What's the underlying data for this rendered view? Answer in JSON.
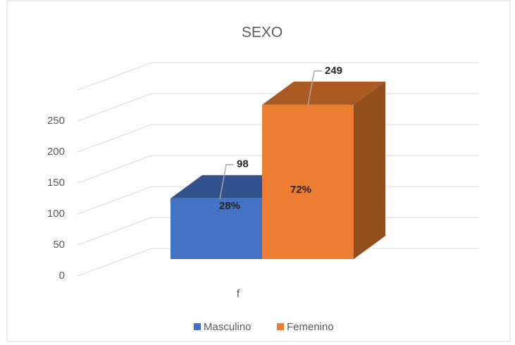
{
  "chart_data": {
    "type": "bar3d",
    "title": "SEXO",
    "categories": [
      "f"
    ],
    "series": [
      {
        "name": "Masculino",
        "color": "#4472c4",
        "values": [
          98
        ],
        "share": [
          28
        ],
        "share_labels": [
          "28%"
        ]
      },
      {
        "name": "Femenino",
        "color": "#ed7d31",
        "values": [
          249
        ],
        "share": [
          72
        ],
        "share_labels": [
          "72%"
        ]
      }
    ],
    "ylim": [
      0,
      300
    ],
    "yticks": [
      0,
      50,
      100,
      150,
      200,
      250
    ],
    "grid": true,
    "legend": "bottom"
  }
}
